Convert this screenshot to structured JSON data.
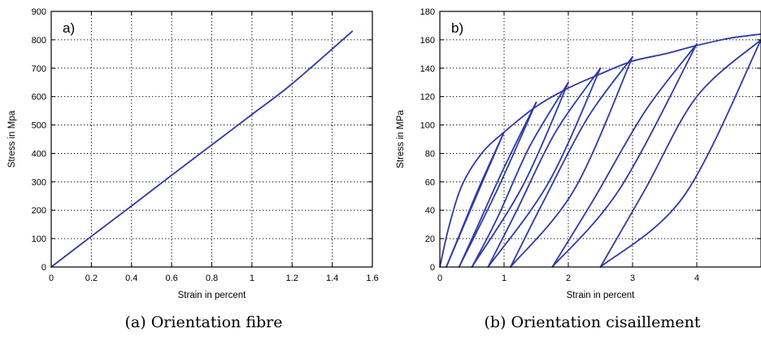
{
  "chart_data": [
    {
      "type": "line",
      "panel_label": "a)",
      "caption": "(a)  Orientation fibre",
      "xlabel": "Strain in percent",
      "ylabel": "Stress in Mpa",
      "xlim": [
        0,
        1.6
      ],
      "ylim": [
        0,
        900
      ],
      "xticks": [
        "0",
        "0.2",
        "0.4",
        "0.6",
        "0.8",
        "1",
        "1.2",
        "1.4",
        "1.6"
      ],
      "yticks": [
        "0",
        "100",
        "200",
        "300",
        "400",
        "500",
        "600",
        "700",
        "800",
        "900"
      ],
      "grid": true,
      "color": "#2f3aa6",
      "series": [
        {
          "x": [
            0,
            0.2,
            0.4,
            0.6,
            0.8,
            1.0,
            1.2,
            1.5
          ],
          "y": [
            0,
            108,
            215,
            323,
            430,
            537,
            645,
            830
          ]
        }
      ]
    },
    {
      "type": "line",
      "panel_label": "b)",
      "caption": "(b)  Orientation cisaillement",
      "xlabel": "Strain in percent",
      "ylabel": "Stress in MPa",
      "xlim": [
        0,
        5
      ],
      "ylim": [
        0,
        180
      ],
      "xticks": [
        "0",
        "1",
        "2",
        "3",
        "4"
      ],
      "yticks": [
        "0",
        "20",
        "40",
        "60",
        "80",
        "100",
        "120",
        "140",
        "160",
        "180"
      ],
      "grid": true,
      "color": "#2f3aa6",
      "series": [
        {
          "x": [
            0,
            0.15,
            0.35,
            0.65,
            1.0,
            1.5,
            2.0,
            2.5,
            3.0,
            3.5,
            4.0,
            4.5,
            5.0
          ],
          "y": [
            0,
            30,
            58,
            80,
            95,
            113,
            126,
            136,
            145,
            150,
            156,
            161,
            164
          ]
        },
        {
          "x": [
            0.1,
            0.55,
            1.0
          ],
          "y": [
            0,
            48,
            95
          ]
        },
        {
          "x": [
            1.0,
            0.6,
            0.3,
            0.1
          ],
          "y": [
            95,
            55,
            22,
            0
          ]
        },
        {
          "x": [
            0.3,
            0.9,
            1.5
          ],
          "y": [
            0,
            55,
            116
          ]
        },
        {
          "x": [
            1.5,
            1.0,
            0.6,
            0.3
          ],
          "y": [
            116,
            70,
            30,
            0
          ]
        },
        {
          "x": [
            0.5,
            1.3,
            2.0
          ],
          "y": [
            0,
            58,
            130
          ]
        },
        {
          "x": [
            2.0,
            1.4,
            0.9,
            0.5
          ],
          "y": [
            130,
            85,
            35,
            0
          ]
        },
        {
          "x": [
            0.75,
            1.7,
            2.5
          ],
          "y": [
            0,
            60,
            140
          ]
        },
        {
          "x": [
            2.5,
            1.8,
            1.2,
            0.75
          ],
          "y": [
            140,
            95,
            40,
            0
          ]
        },
        {
          "x": [
            1.1,
            2.1,
            3.0
          ],
          "y": [
            0,
            55,
            148
          ]
        },
        {
          "x": [
            3.0,
            2.3,
            1.6,
            1.1
          ],
          "y": [
            148,
            105,
            45,
            0
          ]
        },
        {
          "x": [
            1.75,
            2.8,
            4.0
          ],
          "y": [
            0,
            55,
            157
          ]
        },
        {
          "x": [
            4.0,
            3.2,
            2.4,
            1.75
          ],
          "y": [
            157,
            110,
            48,
            0
          ]
        },
        {
          "x": [
            2.5,
            3.8,
            5.0
          ],
          "y": [
            0,
            50,
            160
          ]
        },
        {
          "x": [
            5.0,
            4.0,
            3.2,
            2.5
          ],
          "y": [
            160,
            120,
            55,
            0
          ]
        }
      ]
    }
  ]
}
